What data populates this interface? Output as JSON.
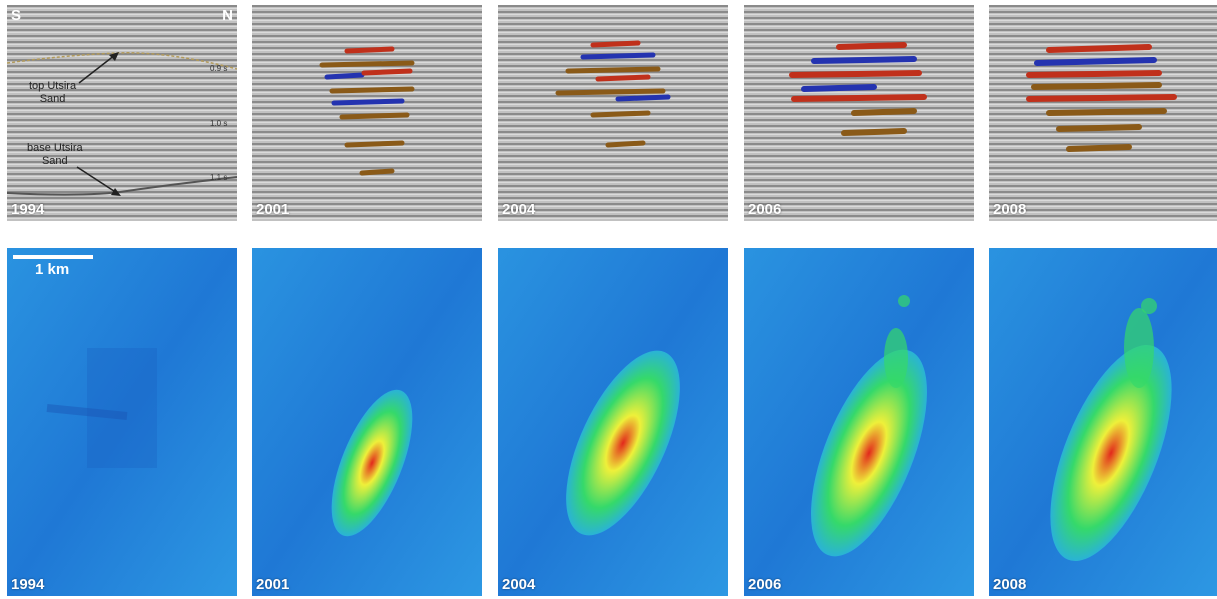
{
  "top_row": {
    "orientation_left": "S",
    "orientation_right": "N",
    "labels": {
      "top_sand": [
        "top Utsira",
        "Sand"
      ],
      "base_sand": [
        "base Utsira",
        "Sand"
      ]
    },
    "time_ticks": [
      "0.9 s",
      "1.0 s",
      "1.1 s"
    ],
    "years": [
      "1994",
      "2001",
      "2004",
      "2006",
      "2008"
    ]
  },
  "bottom_row": {
    "scale_label": "1 km",
    "years": [
      "1994",
      "2001",
      "2004",
      "2006",
      "2008"
    ]
  },
  "colors": {
    "seismic_grey": "#a9a9a9",
    "seismic_red": "#c0301b",
    "seismic_blue": "#2433b0",
    "seismic_brown": "#8a5a18",
    "map_blue": "#1e7fd8",
    "map_green": "#35d96a",
    "map_yellow": "#eef03a",
    "map_red": "#e2281c"
  }
}
